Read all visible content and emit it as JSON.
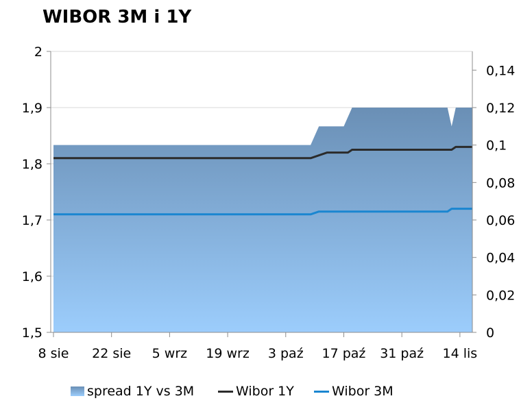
{
  "chart_data": {
    "type": "area+line",
    "title": "WIBOR 3M i 1Y",
    "x_ticks": [
      "8 sie",
      "22 sie",
      "5 wrz",
      "19 wrz",
      "3 paź",
      "17 paź",
      "31 paź",
      "14 lis"
    ],
    "left_axis": {
      "ylim": [
        1.5,
        2.0
      ],
      "ticks": [
        "1,5",
        "1,6",
        "1,7",
        "1,8",
        "1,9",
        "2"
      ]
    },
    "right_axis": {
      "ylim": [
        0,
        0.15
      ],
      "ticks": [
        "0",
        "0,02",
        "0,04",
        "0,06",
        "0,08",
        "0,1",
        "0,12",
        "0,14"
      ]
    },
    "x_range_days": [
      0,
      101
    ],
    "grid": true,
    "legend_position": "bottom",
    "series": [
      {
        "name": "spread 1Y vs 3M",
        "kind": "area",
        "axis": "right",
        "color": "#7098c0",
        "points": [
          [
            0,
            0.1
          ],
          [
            62,
            0.1
          ],
          [
            64,
            0.11
          ],
          [
            70,
            0.11
          ],
          [
            72,
            0.12
          ],
          [
            95,
            0.12
          ],
          [
            96,
            0.11
          ],
          [
            97,
            0.12
          ],
          [
            101,
            0.12
          ]
        ]
      },
      {
        "name": "Wibor 1Y",
        "kind": "line",
        "axis": "left",
        "color": "#2b2b2b",
        "points": [
          [
            0,
            1.81
          ],
          [
            62,
            1.81
          ],
          [
            64,
            1.815
          ],
          [
            66,
            1.82
          ],
          [
            71,
            1.82
          ],
          [
            72,
            1.825
          ],
          [
            96,
            1.825
          ],
          [
            97,
            1.83
          ],
          [
            101,
            1.83
          ]
        ]
      },
      {
        "name": "Wibor 3M",
        "kind": "line",
        "axis": "left",
        "color": "#1a86d0",
        "points": [
          [
            0,
            1.71
          ],
          [
            62,
            1.71
          ],
          [
            64,
            1.715
          ],
          [
            95,
            1.715
          ],
          [
            96,
            1.72
          ],
          [
            101,
            1.72
          ]
        ]
      }
    ]
  }
}
